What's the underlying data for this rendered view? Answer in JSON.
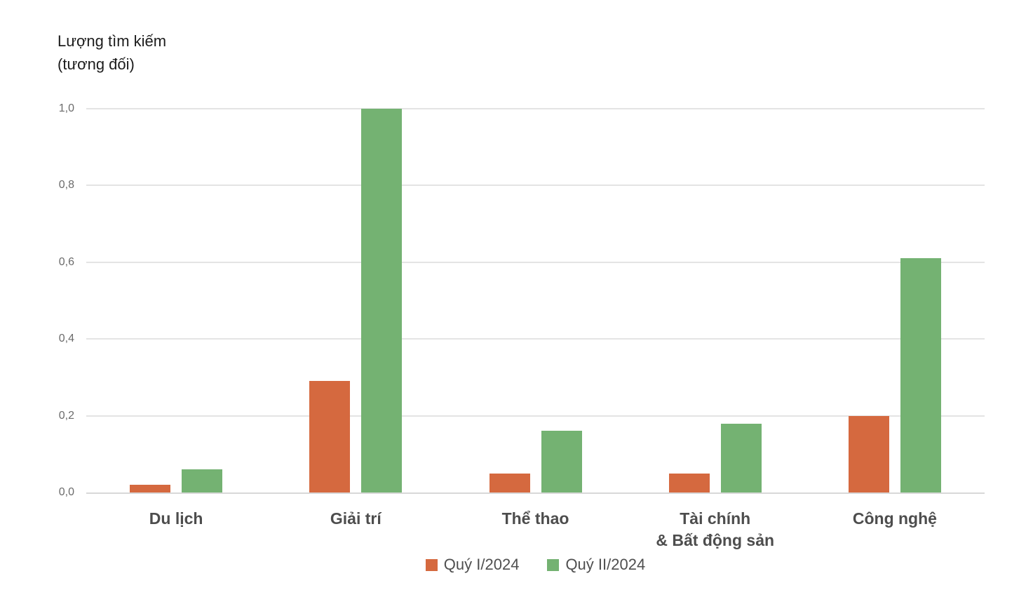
{
  "chart": {
    "y_axis_title_line1": "Lượng tìm kiếm",
    "y_axis_title_line2": "(tương đối)"
  },
  "chart_data": {
    "type": "bar",
    "title": "",
    "ylabel": "Lượng tìm kiếm (tương đối)",
    "xlabel": "",
    "categories": [
      "Du lịch",
      "Giải trí",
      "Thể thao",
      "Tài chính\n& Bất động sản",
      "Công nghệ"
    ],
    "series": [
      {
        "name": "Quý I/2024",
        "color": "#d5693f",
        "values": [
          0.02,
          0.29,
          0.05,
          0.05,
          0.2
        ]
      },
      {
        "name": "Quý II/2024",
        "color": "#74b272",
        "values": [
          0.06,
          1.0,
          0.16,
          0.18,
          0.61
        ]
      }
    ],
    "ylim": [
      0,
      1.0
    ],
    "yticks": [
      0,
      0.2,
      0.4,
      0.6,
      0.8,
      1.0
    ],
    "ytick_labels": [
      "0,0",
      "0,2",
      "0,4",
      "0,6",
      "0,8",
      "1,0"
    ],
    "grid": true,
    "decimal_separator": ",",
    "legend_position": "bottom"
  }
}
